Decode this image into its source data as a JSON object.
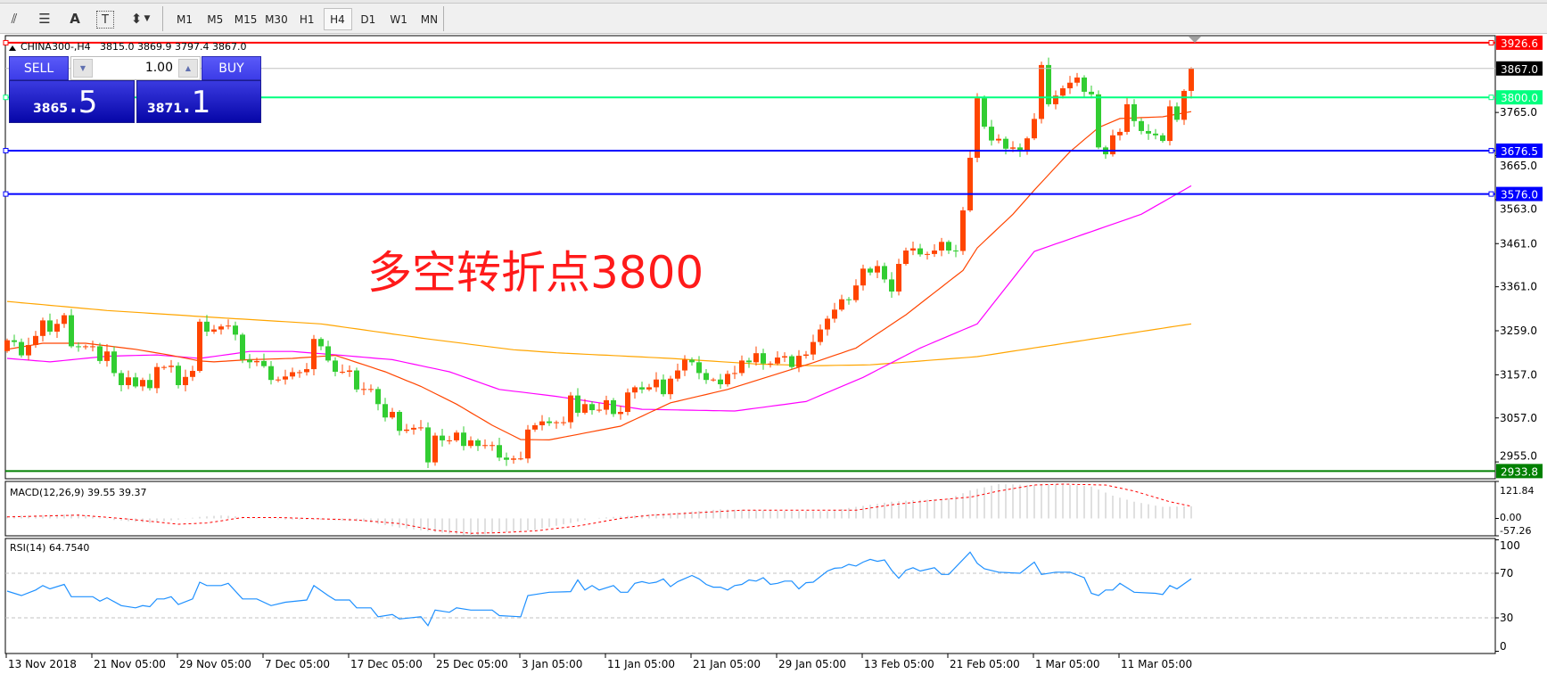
{
  "toolbar": {
    "icons": [
      "elliott-wave-icon",
      "fibonacci-icon",
      "text-icon",
      "text-label-icon",
      "arrows-icon"
    ],
    "icon_glyphs": [
      "⫽",
      "☰",
      "A",
      "T",
      "⬍"
    ],
    "timeframes": [
      "M1",
      "M5",
      "M15",
      "M30",
      "H1",
      "H4",
      "D1",
      "W1",
      "MN"
    ],
    "active_timeframe": "H4"
  },
  "chart_header": {
    "symbol": "CHINA300-,H4",
    "ohlc": "3815.0 3869.9 3797.4 3867.0"
  },
  "trade_panel": {
    "sell_label": "SELL",
    "buy_label": "BUY",
    "lot": "1.00",
    "sell_price_small": "3865",
    "sell_price_big": ".5",
    "buy_price_small": "3871",
    "buy_price_big": ".1",
    "color": "#0a0ab0"
  },
  "annotation": "多空转折点3800",
  "colors": {
    "up": "#FF4500",
    "down": "#32CD32",
    "ma_fast": "#FF4500",
    "ma_mid": "#FF00FF",
    "ma_slow": "#FFA500",
    "rsi": "#1E90FF",
    "macd_hist": "#C0C0C0",
    "macd_signal": "#FF0000"
  },
  "chart_data": {
    "type": "candlestick",
    "ylim": [
      2916,
      3943
    ],
    "price_ticks": [
      "3765.0",
      "3665.0",
      "3563.0",
      "3461.0",
      "3361.0",
      "3259.0",
      "3157.0",
      "3057.0",
      "2955.0"
    ],
    "date_labels": [
      "13 Nov 2018",
      "21 Nov 05:00",
      "29 Nov 05:00",
      "7 Dec 05:00",
      "17 Dec 05:00",
      "25 Dec 05:00",
      "3 Jan 05:00",
      "11 Jan 05:00",
      "21 Jan 05:00",
      "29 Jan 05:00",
      "13 Feb 05:00",
      "21 Feb 05:00",
      "1 Mar 05:00",
      "11 Mar 05:00"
    ],
    "first_open": 3212,
    "closes": [
      3237,
      3233,
      3202,
      3226,
      3247,
      3283,
      3257,
      3275,
      3295,
      3223,
      3221,
      3223,
      3223,
      3189,
      3211,
      3161,
      3133,
      3151,
      3130,
      3145,
      3126,
      3175,
      3175,
      3178,
      3133,
      3152,
      3166,
      3280,
      3257,
      3262,
      3269,
      3271,
      3250,
      3192,
      3186,
      3189,
      3177,
      3145,
      3146,
      3153,
      3163,
      3163,
      3170,
      3240,
      3223,
      3190,
      3164,
      3164,
      3167,
      3123,
      3124,
      3124,
      3089,
      3058,
      3071,
      3027,
      3030,
      3034,
      3035,
      2954,
      3016,
      3005,
      3005,
      3023,
      2992,
      3005,
      2992,
      2994,
      2994,
      2965,
      2960,
      2963,
      2963,
      3030,
      3040,
      3049,
      3045,
      3047,
      3047,
      3109,
      3069,
      3089,
      3075,
      3076,
      3098,
      3066,
      3071,
      3116,
      3128,
      3123,
      3128,
      3146,
      3112,
      3148,
      3167,
      3192,
      3186,
      3161,
      3145,
      3146,
      3135,
      3159,
      3161,
      3190,
      3186,
      3207,
      3183,
      3183,
      3197,
      3200,
      3175,
      3201,
      3204,
      3233,
      3262,
      3287,
      3308,
      3332,
      3330,
      3364,
      3403,
      3394,
      3409,
      3378,
      3350,
      3414,
      3445,
      3450,
      3436,
      3437,
      3445,
      3465,
      3445,
      3444,
      3538,
      3660,
      3798,
      3732,
      3700,
      3704,
      3681,
      3684,
      3676,
      3705,
      3750,
      3875,
      3784,
      3804,
      3821,
      3834,
      3846,
      3813,
      3807,
      3684,
      3668,
      3712,
      3720,
      3784,
      3745,
      3722,
      3716,
      3712,
      3699,
      3779,
      3748,
      3815,
      3867
    ],
    "last_bar_ohlc": [
      3815.0,
      3869.9,
      3797.4,
      3867.0
    ],
    "ma_fast": [
      [
        0,
        3216
      ],
      [
        5,
        3230
      ],
      [
        11,
        3230
      ],
      [
        18,
        3216
      ],
      [
        23,
        3202
      ],
      [
        27,
        3189
      ],
      [
        29,
        3187
      ],
      [
        34,
        3192
      ],
      [
        40,
        3195
      ],
      [
        46,
        3202
      ],
      [
        53,
        3164
      ],
      [
        58,
        3130
      ],
      [
        63,
        3089
      ],
      [
        68,
        3040
      ],
      [
        72,
        3007
      ],
      [
        76,
        3006
      ],
      [
        86,
        3038
      ],
      [
        93,
        3092
      ],
      [
        101,
        3123
      ],
      [
        113,
        3185
      ],
      [
        119,
        3219
      ],
      [
        126,
        3296
      ],
      [
        134,
        3399
      ],
      [
        136,
        3451
      ],
      [
        141,
        3529
      ],
      [
        144,
        3585
      ],
      [
        149,
        3674
      ],
      [
        153,
        3730
      ],
      [
        156,
        3751
      ],
      [
        162,
        3755
      ],
      [
        166,
        3767
      ]
    ],
    "ma_mid": [
      [
        0,
        3195
      ],
      [
        6,
        3187
      ],
      [
        14,
        3200
      ],
      [
        21,
        3203
      ],
      [
        27,
        3195
      ],
      [
        34,
        3211
      ],
      [
        40,
        3211
      ],
      [
        47,
        3202
      ],
      [
        54,
        3192
      ],
      [
        62,
        3164
      ],
      [
        69,
        3123
      ],
      [
        77,
        3107
      ],
      [
        89,
        3077
      ],
      [
        102,
        3073
      ],
      [
        112,
        3095
      ],
      [
        120,
        3151
      ],
      [
        128,
        3219
      ],
      [
        136,
        3275
      ],
      [
        144,
        3443
      ],
      [
        159,
        3529
      ],
      [
        166,
        3595
      ]
    ],
    "ma_slow": [
      [
        0,
        3327
      ],
      [
        14,
        3306
      ],
      [
        29,
        3290
      ],
      [
        44,
        3275
      ],
      [
        59,
        3240
      ],
      [
        71,
        3215
      ],
      [
        77,
        3208
      ],
      [
        93,
        3195
      ],
      [
        105,
        3182
      ],
      [
        113,
        3178
      ],
      [
        121,
        3180
      ],
      [
        136,
        3199
      ],
      [
        166,
        3275
      ]
    ],
    "hlines": [
      {
        "label": "3926.6",
        "value": 3926.6,
        "color": "#FF0000",
        "text_color": "#FFFFFF"
      },
      {
        "label": "3867.0",
        "value": 3867.0,
        "color": "#C0C0C0",
        "text_color": "#FFFFFF",
        "bg": "#000000"
      },
      {
        "label": "3800.0",
        "value": 3800.0,
        "color": "#00FF7F",
        "text_color": "#FFFFFF"
      },
      {
        "label": "3676.5",
        "value": 3676.5,
        "color": "#0000FF",
        "text_color": "#FFFFFF"
      },
      {
        "label": "3576.0",
        "value": 3576.0,
        "color": "#0000FF",
        "text_color": "#FFFFFF"
      },
      {
        "label": "2933.8",
        "value": 2933.8,
        "color": "#008000",
        "text_color": "#FFFFFF"
      }
    ],
    "macd": {
      "label": "MACD(12,26,9) 39.55 39.37",
      "ylim": [
        -57.26,
        121.84
      ],
      "ticks": [
        "121.84",
        "0.00",
        "-57.26"
      ],
      "main": [
        [
          0,
          8
        ],
        [
          10,
          14
        ],
        [
          15,
          -5
        ],
        [
          20,
          -15
        ],
        [
          27,
          5
        ],
        [
          30,
          10
        ],
        [
          38,
          -3
        ],
        [
          45,
          -5
        ],
        [
          50,
          -10
        ],
        [
          55,
          -30
        ],
        [
          60,
          -45
        ],
        [
          65,
          -57
        ],
        [
          70,
          -45
        ],
        [
          74,
          -38
        ],
        [
          79,
          -15
        ],
        [
          82,
          0
        ],
        [
          88,
          10
        ],
        [
          94,
          19
        ],
        [
          100,
          30
        ],
        [
          110,
          24
        ],
        [
          115,
          24
        ],
        [
          119,
          38
        ],
        [
          124,
          55
        ],
        [
          127,
          60
        ],
        [
          132,
          65
        ],
        [
          135,
          92
        ],
        [
          139,
          113
        ],
        [
          144,
          110
        ],
        [
          148,
          113
        ],
        [
          152,
          105
        ],
        [
          155,
          75
        ],
        [
          158,
          55
        ],
        [
          162,
          38
        ],
        [
          166,
          40
        ]
      ],
      "signal": [
        [
          0,
          5
        ],
        [
          10,
          11
        ],
        [
          16,
          0
        ],
        [
          24,
          -19
        ],
        [
          28,
          -15
        ],
        [
          33,
          3
        ],
        [
          38,
          3
        ],
        [
          49,
          -5
        ],
        [
          55,
          -17
        ],
        [
          60,
          -39
        ],
        [
          65,
          -49
        ],
        [
          69,
          -47
        ],
        [
          74,
          -41
        ],
        [
          80,
          -25
        ],
        [
          86,
          0
        ],
        [
          90,
          10
        ],
        [
          103,
          27
        ],
        [
          119,
          27
        ],
        [
          124,
          45
        ],
        [
          130,
          60
        ],
        [
          135,
          70
        ],
        [
          139,
          90
        ],
        [
          144,
          110
        ],
        [
          148,
          113
        ],
        [
          154,
          110
        ],
        [
          158,
          90
        ],
        [
          163,
          55
        ],
        [
          166,
          40
        ]
      ]
    },
    "rsi": {
      "label": "RSI(14) 64.7540",
      "ylim": [
        0,
        100
      ],
      "levels": [
        70,
        30
      ],
      "ticks": [
        "100",
        "70",
        "30",
        "0"
      ],
      "values": [
        [
          0,
          54
        ],
        [
          2,
          50
        ],
        [
          4,
          55
        ],
        [
          5,
          59
        ],
        [
          6,
          56
        ],
        [
          8,
          60
        ],
        [
          9,
          49
        ],
        [
          12,
          49
        ],
        [
          13,
          45
        ],
        [
          14,
          48
        ],
        [
          16,
          41
        ],
        [
          18,
          39
        ],
        [
          19,
          41
        ],
        [
          20,
          40
        ],
        [
          21,
          47
        ],
        [
          22,
          47
        ],
        [
          23,
          49
        ],
        [
          24,
          42
        ],
        [
          26,
          47
        ],
        [
          27,
          62
        ],
        [
          28,
          59
        ],
        [
          30,
          59
        ],
        [
          31,
          61
        ],
        [
          33,
          47
        ],
        [
          35,
          47
        ],
        [
          37,
          41
        ],
        [
          39,
          44
        ],
        [
          42,
          46
        ],
        [
          43,
          59
        ],
        [
          45,
          50
        ],
        [
          46,
          46
        ],
        [
          48,
          46
        ],
        [
          49,
          39
        ],
        [
          51,
          39
        ],
        [
          52,
          31
        ],
        [
          54,
          33
        ],
        [
          55,
          29
        ],
        [
          58,
          31
        ],
        [
          59,
          23
        ],
        [
          60,
          37
        ],
        [
          62,
          35
        ],
        [
          63,
          39
        ],
        [
          65,
          37
        ],
        [
          68,
          37
        ],
        [
          69,
          32
        ],
        [
          72,
          31
        ],
        [
          73,
          50
        ],
        [
          74,
          51
        ],
        [
          76,
          53
        ],
        [
          79,
          53.5
        ],
        [
          80,
          64
        ],
        [
          81,
          55
        ],
        [
          82,
          59
        ],
        [
          83,
          55
        ],
        [
          85,
          59
        ],
        [
          86,
          53
        ],
        [
          87,
          53
        ],
        [
          88,
          61
        ],
        [
          89,
          62.5
        ],
        [
          90,
          61
        ],
        [
          91,
          62
        ],
        [
          92,
          65
        ],
        [
          93,
          58
        ],
        [
          94,
          62.5
        ],
        [
          96,
          68
        ],
        [
          97,
          65
        ],
        [
          98,
          60
        ],
        [
          99,
          57.5
        ],
        [
          100,
          57.5
        ],
        [
          101,
          55
        ],
        [
          102,
          59
        ],
        [
          103,
          60
        ],
        [
          104,
          64
        ],
        [
          105,
          63
        ],
        [
          106,
          66
        ],
        [
          107,
          60
        ],
        [
          108,
          61
        ],
        [
          109,
          63
        ],
        [
          110,
          63
        ],
        [
          111,
          56
        ],
        [
          112,
          61.5
        ],
        [
          113,
          62
        ],
        [
          115,
          72
        ],
        [
          116,
          74.5
        ],
        [
          117,
          75
        ],
        [
          118,
          78
        ],
        [
          119,
          76.5
        ],
        [
          120,
          80
        ],
        [
          121,
          82.5
        ],
        [
          122,
          80.7
        ],
        [
          123,
          82
        ],
        [
          124,
          72.7
        ],
        [
          125,
          65.5
        ],
        [
          126,
          72.7
        ],
        [
          127,
          75
        ],
        [
          128,
          72
        ],
        [
          130,
          75
        ],
        [
          131,
          69
        ],
        [
          132,
          69
        ],
        [
          135,
          89
        ],
        [
          136,
          79
        ],
        [
          137,
          74
        ],
        [
          139,
          71
        ],
        [
          142,
          70
        ],
        [
          144,
          80
        ],
        [
          145,
          69
        ],
        [
          147,
          71
        ],
        [
          149,
          71
        ],
        [
          151,
          66
        ],
        [
          152,
          52
        ],
        [
          153,
          50
        ],
        [
          154,
          55
        ],
        [
          155,
          55
        ],
        [
          156,
          61
        ],
        [
          158,
          53
        ],
        [
          161,
          52
        ],
        [
          162,
          51
        ],
        [
          163,
          59
        ],
        [
          164,
          56
        ],
        [
          166,
          65
        ]
      ]
    }
  }
}
